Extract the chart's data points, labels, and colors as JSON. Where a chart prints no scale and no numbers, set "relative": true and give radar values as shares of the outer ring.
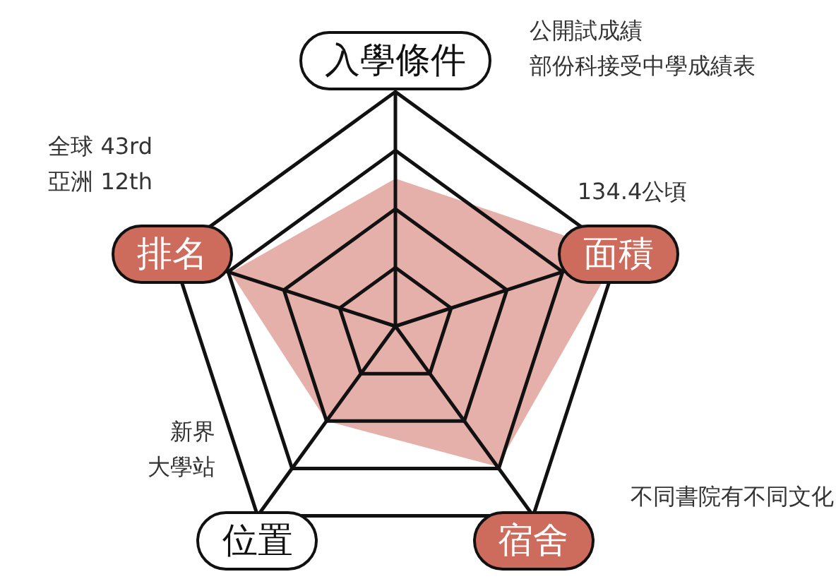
{
  "chart_data": {
    "type": "radar",
    "relative": true,
    "categories": [
      "入學條件",
      "面積",
      "宿舍",
      "位置",
      "排名"
    ],
    "colors": [
      "#ffffff",
      "#cd6b5c",
      "#cd6b5c",
      "#ffffff",
      "#cd6b5c"
    ],
    "series": [
      {
        "color": "#e5b0aa",
        "values": [
          0.63,
          1,
          0.74,
          0.5,
          0.74
        ]
      }
    ],
    "annotations": [
      "公開試成績",
      "部份科接受中學成績表",
      "134.4公頃",
      "不同書院有不同文化",
      "新界",
      "大學站",
      "全球 43rd",
      "亞洲 12th"
    ],
    "grid": true,
    "legend": false
  }
}
